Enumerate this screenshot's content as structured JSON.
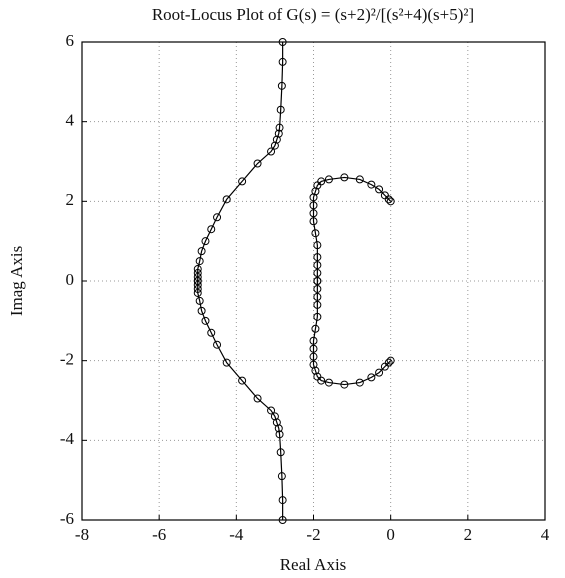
{
  "chart_data": {
    "type": "line",
    "title": "Root-Locus Plot of G(s) = (s+2)²/[(s²+4)(s+5)²]",
    "xlabel": "Real Axis",
    "ylabel": "Imag Axis",
    "xlim": [
      -8,
      4
    ],
    "ylim": [
      -6,
      6
    ],
    "xticks": [
      -8,
      -6,
      -4,
      -2,
      0,
      2,
      4
    ],
    "yticks": [
      -6,
      -4,
      -2,
      0,
      2,
      4,
      6
    ],
    "grid": true,
    "color": "#000000",
    "series": [
      {
        "x": [
          -5,
          -5,
          -5,
          -5,
          -4.95,
          -4.9,
          -4.8,
          -4.65,
          -4.5,
          -4.25,
          -3.85,
          -3.45,
          -3.1,
          -3.0,
          -2.95,
          -2.9,
          -2.88,
          -2.85,
          -2.82,
          -2.8,
          -2.8
        ],
        "y": [
          0,
          0.1,
          0.2,
          0.3,
          0.5,
          0.75,
          1.0,
          1.3,
          1.6,
          2.05,
          2.5,
          2.95,
          3.25,
          3.4,
          3.55,
          3.7,
          3.85,
          4.3,
          4.9,
          5.5,
          6
        ]
      },
      {
        "x": [
          -5,
          -5,
          -5,
          -5,
          -4.95,
          -4.9,
          -4.8,
          -4.65,
          -4.5,
          -4.25,
          -3.85,
          -3.45,
          -3.1,
          -3.0,
          -2.95,
          -2.9,
          -2.88,
          -2.85,
          -2.82,
          -2.8,
          -2.8
        ],
        "y": [
          0,
          -0.1,
          -0.2,
          -0.3,
          -0.5,
          -0.75,
          -1.0,
          -1.3,
          -1.6,
          -2.05,
          -2.5,
          -2.95,
          -3.25,
          -3.4,
          -3.55,
          -3.7,
          -3.85,
          -4.3,
          -4.9,
          -5.5,
          -6
        ]
      },
      {
        "x": [
          0,
          -0.05,
          -0.15,
          -0.3,
          -0.5,
          -0.8,
          -1.2,
          -1.6,
          -1.8,
          -1.9,
          -1.95,
          -2,
          -2,
          -2,
          -2,
          -1.95,
          -1.9,
          -1.9,
          -1.9,
          -1.9,
          -1.9
        ],
        "y": [
          2,
          2.05,
          2.15,
          2.3,
          2.42,
          2.55,
          2.6,
          2.55,
          2.5,
          2.4,
          2.25,
          2.1,
          1.9,
          1.7,
          1.5,
          1.2,
          0.9,
          0.6,
          0.4,
          0.2,
          0
        ]
      },
      {
        "x": [
          0,
          -0.05,
          -0.15,
          -0.3,
          -0.5,
          -0.8,
          -1.2,
          -1.6,
          -1.8,
          -1.9,
          -1.95,
          -2,
          -2,
          -2,
          -2,
          -1.95,
          -1.9,
          -1.9,
          -1.9,
          -1.9,
          -1.9
        ],
        "y": [
          -2,
          -2.05,
          -2.15,
          -2.3,
          -2.42,
          -2.55,
          -2.6,
          -2.55,
          -2.5,
          -2.4,
          -2.25,
          -2.1,
          -1.9,
          -1.7,
          -1.5,
          -1.2,
          -0.9,
          -0.6,
          -0.4,
          -0.2,
          0
        ]
      }
    ]
  }
}
